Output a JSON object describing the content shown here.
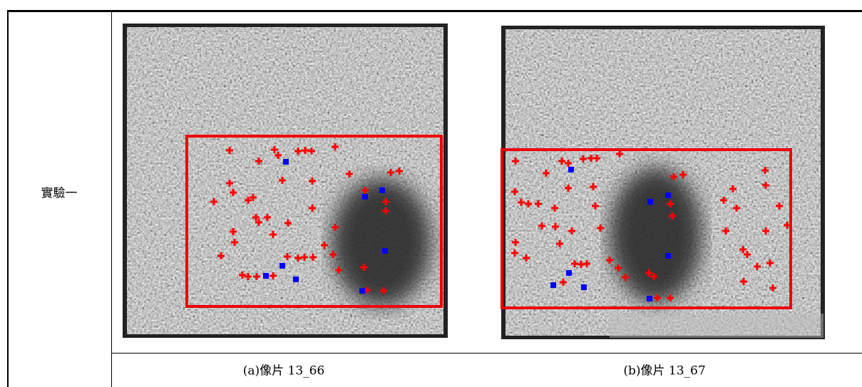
{
  "table": {
    "row_header": "實驗一",
    "captions": [
      "(a)像片 13_66",
      "(b)像片 13_67"
    ]
  }
}
